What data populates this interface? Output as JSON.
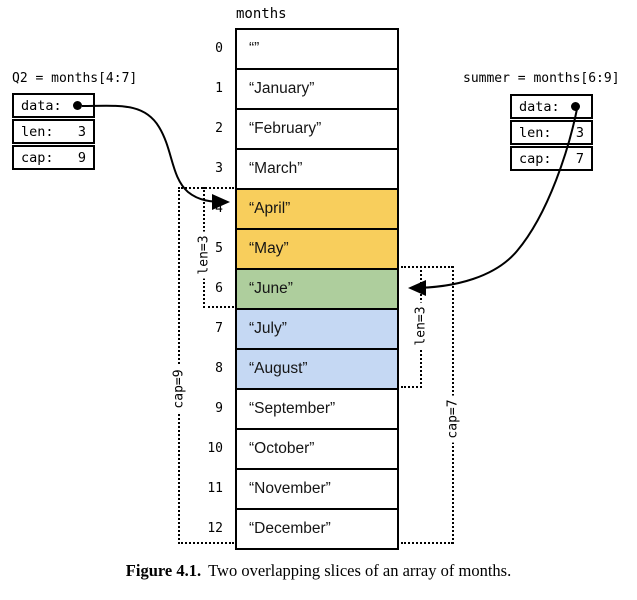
{
  "array": {
    "label": "months",
    "cells": [
      {
        "index": "0",
        "text": "“”",
        "fill": "#FFFFFF"
      },
      {
        "index": "1",
        "text": "“January”",
        "fill": "#FFFFFF"
      },
      {
        "index": "2",
        "text": "“February”",
        "fill": "#FFFFFF"
      },
      {
        "index": "3",
        "text": "“March”",
        "fill": "#FFFFFF"
      },
      {
        "index": "4",
        "text": "“April”",
        "fill": "#F8CE5C"
      },
      {
        "index": "5",
        "text": "“May”",
        "fill": "#F8CE5C"
      },
      {
        "index": "6",
        "text": "“June”",
        "fill": "#AECE9D"
      },
      {
        "index": "7",
        "text": "“July”",
        "fill": "#C5D8F3"
      },
      {
        "index": "8",
        "text": "“August”",
        "fill": "#C5D8F3"
      },
      {
        "index": "9",
        "text": "“September”",
        "fill": "#FFFFFF"
      },
      {
        "index": "10",
        "text": "“October”",
        "fill": "#FFFFFF"
      },
      {
        "index": "11",
        "text": "“November”",
        "fill": "#FFFFFF"
      },
      {
        "index": "12",
        "text": "“December”",
        "fill": "#FFFFFF"
      }
    ]
  },
  "q2_slice": {
    "title": "Q2 = months[4:7]",
    "rows": [
      {
        "label": "data:",
        "value": ""
      },
      {
        "label": "len:",
        "value": "3"
      },
      {
        "label": "cap:",
        "value": "9"
      }
    ],
    "len_bracket": "len=3",
    "cap_bracket": "cap=9"
  },
  "summer_slice": {
    "title": "summer = months[6:9]",
    "rows": [
      {
        "label": "data:",
        "value": ""
      },
      {
        "label": "len:",
        "value": "3"
      },
      {
        "label": "cap:",
        "value": "7"
      }
    ],
    "len_bracket": "len=3",
    "cap_bracket": "cap=7"
  },
  "caption": {
    "label": "Figure 4.1.",
    "text": "Two overlapping slices of an array of months."
  },
  "colors": {
    "april_may_highlight": "#F8CE5C",
    "june_highlight": "#AECE9D",
    "july_august_highlight": "#C5D8F3",
    "line": "#000000"
  }
}
